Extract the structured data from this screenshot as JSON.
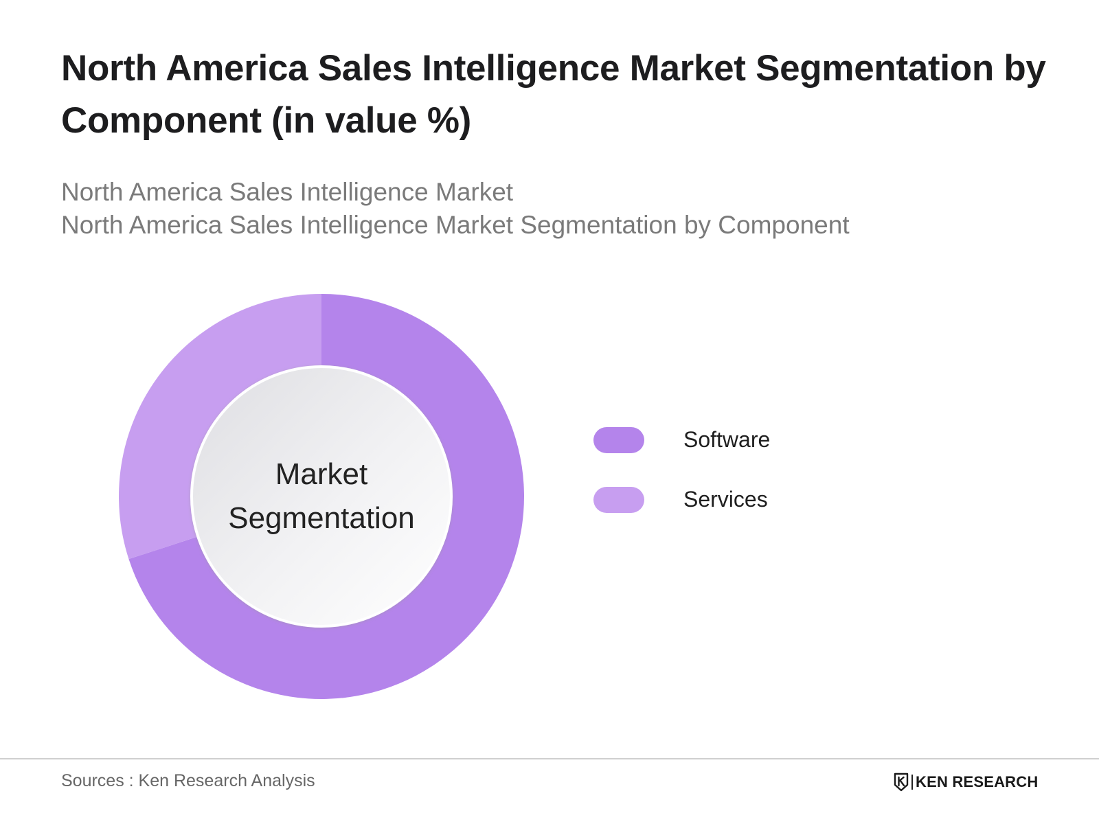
{
  "header": {
    "title": "North America Sales Intelligence Market Segmentation by Component (in value %)",
    "subtitle_line1": "North America Sales Intelligence Market",
    "subtitle_line2": "North America Sales Intelligence Market Segmentation by Component"
  },
  "chart_data": {
    "type": "pie",
    "style": "donut",
    "center_label_line1": "Market",
    "center_label_line2": "Segmentation",
    "categories": [
      "Software",
      "Services"
    ],
    "values": [
      70,
      30
    ],
    "colors": [
      "#b484eb",
      "#c79ef0"
    ],
    "legend_position": "right"
  },
  "legend": {
    "items": [
      {
        "label": "Software",
        "color": "#b484eb"
      },
      {
        "label": "Services",
        "color": "#c79ef0"
      }
    ]
  },
  "footer": {
    "sources": "Sources : Ken Research Analysis",
    "brand": "KEN RESEARCH",
    "brand_icon": "ken-research-logo-icon"
  }
}
